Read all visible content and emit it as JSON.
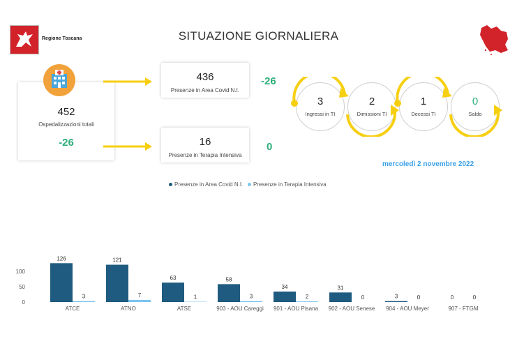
{
  "header": {
    "logo_text": "Regione Toscana",
    "title": "SITUAZIONE GIORNALIERA"
  },
  "summary": {
    "hospitalized_total": "452",
    "hospitalized_label": "Ospedalizzazioni totali",
    "hospitalized_delta": "-26",
    "covid_area": "436",
    "covid_area_label": "Presenze in Area Covid N.I.",
    "covid_area_delta": "-26",
    "icu": "16",
    "icu_label": "Presenze in Terapia Intensiva",
    "icu_delta": "0"
  },
  "icu_flow": [
    {
      "value": "3",
      "label": "Ingressi in TI"
    },
    {
      "value": "2",
      "label": "Dimissioni TI"
    },
    {
      "value": "1",
      "label": "Decessi TI"
    },
    {
      "value": "0",
      "label": "Saldo"
    }
  ],
  "date": "mercoledì 2 novembre 2022",
  "colors": {
    "series_dark": "#1f5b80",
    "series_light": "#7cc3ee",
    "accent_green": "#2eae7a",
    "arrow_yellow": "#f6cf12",
    "date_blue": "#3aa0e8",
    "logo_red": "#d2232a"
  },
  "icons": {
    "hospital": "hospital-icon",
    "region_map": "tuscany-map-icon",
    "logo": "pegasus-logo-icon"
  },
  "chart_data": {
    "type": "bar",
    "categories": [
      "ATCE",
      "ATNO",
      "ATSE",
      "903 - AOU Careggi",
      "901 - AOU Pisana",
      "902 - AOU Senese",
      "904 - AOU Meyer",
      "907 - FTGM"
    ],
    "series": [
      {
        "name": "Presenze in Area Covid N.I.",
        "values": [
          126,
          121,
          63,
          58,
          34,
          31,
          3,
          0
        ]
      },
      {
        "name": "Presenze in Terapia Intensiva",
        "values": [
          3,
          7,
          1,
          3,
          2,
          0,
          0,
          0
        ]
      }
    ],
    "y_ticks": [
      0,
      50,
      100
    ],
    "ylim": [
      0,
      130
    ],
    "legend": "top-center",
    "grid": false
  }
}
